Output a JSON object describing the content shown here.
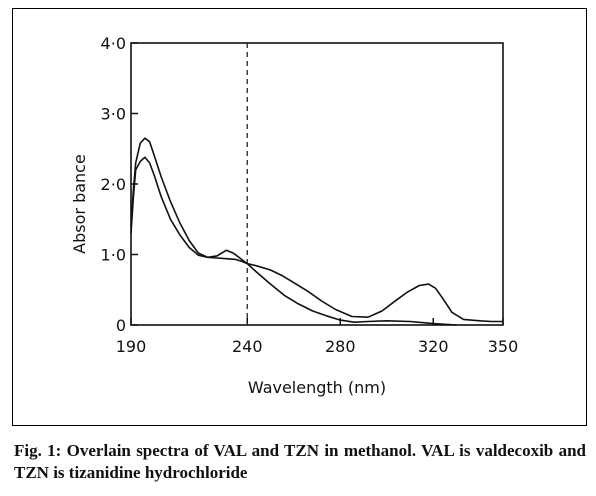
{
  "caption": "Fig. 1: Overlain spectra of VAL and TZN in methanol. VAL is valdecoxib and TZN is tizanidine hydrochloride",
  "chart_data": {
    "type": "line",
    "title": "",
    "xlabel": "Wavelength (nm)",
    "ylabel": "Absor bance",
    "xlim": [
      190,
      350
    ],
    "ylim": [
      0,
      4.0
    ],
    "x_ticks": [
      190,
      240,
      280,
      320,
      350
    ],
    "x_tick_labels": [
      "190",
      "240",
      "280",
      "320",
      "350"
    ],
    "y_ticks": [
      0,
      1.0,
      2.0,
      3.0,
      4.0
    ],
    "y_tick_labels": [
      "0",
      "1·0",
      "2·0",
      "3·0",
      "4·0"
    ],
    "reference_line": {
      "x": 240,
      "style": "dashed"
    },
    "grid": false,
    "legend": "none",
    "series": [
      {
        "x": [
          190,
          191,
          192,
          194,
          196,
          198,
          200,
          203,
          207,
          211,
          215,
          219,
          223,
          227,
          231,
          234,
          238,
          240,
          244,
          250,
          255,
          260,
          266,
          272,
          278,
          285,
          292,
          298,
          304,
          309,
          314,
          318,
          321,
          324,
          328,
          333,
          340,
          345,
          350
        ],
        "values": [
          1.4,
          1.9,
          2.3,
          2.58,
          2.65,
          2.6,
          2.4,
          2.1,
          1.75,
          1.45,
          1.2,
          1.02,
          0.96,
          0.98,
          1.06,
          1.02,
          0.92,
          0.87,
          0.84,
          0.78,
          0.7,
          0.6,
          0.48,
          0.34,
          0.22,
          0.12,
          0.11,
          0.2,
          0.35,
          0.47,
          0.56,
          0.58,
          0.52,
          0.38,
          0.18,
          0.08,
          0.06,
          0.05,
          0.05
        ]
      },
      {
        "x": [
          190,
          191,
          192,
          194,
          196,
          198,
          200,
          203,
          207,
          211,
          215,
          219,
          223,
          227,
          231,
          235,
          238,
          240,
          244,
          250,
          256,
          262,
          268,
          274,
          280,
          286,
          292,
          300,
          310,
          320,
          330
        ],
        "values": [
          1.3,
          1.8,
          2.2,
          2.32,
          2.38,
          2.3,
          2.12,
          1.82,
          1.5,
          1.28,
          1.1,
          0.99,
          0.96,
          0.95,
          0.94,
          0.93,
          0.9,
          0.87,
          0.75,
          0.58,
          0.42,
          0.3,
          0.2,
          0.13,
          0.07,
          0.04,
          0.05,
          0.06,
          0.05,
          0.02,
          0.0
        ]
      }
    ]
  }
}
